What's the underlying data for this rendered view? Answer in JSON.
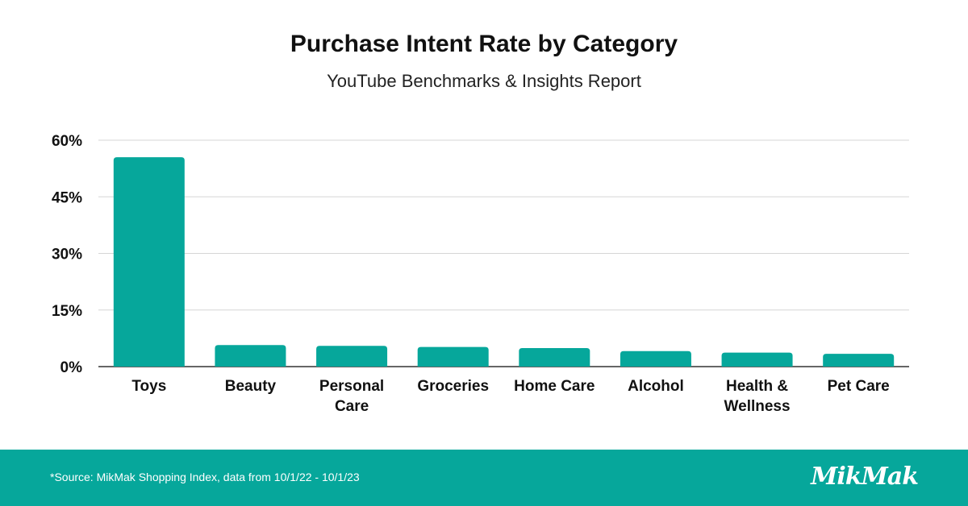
{
  "chart_data": {
    "type": "bar",
    "title": "Purchase Intent Rate by Category",
    "subtitle": "YouTube Benchmarks & Insights Report",
    "categories": [
      [
        "Toys"
      ],
      [
        "Beauty"
      ],
      [
        "Personal",
        "Care"
      ],
      [
        "Groceries"
      ],
      [
        "Home Care"
      ],
      [
        "Alcohol"
      ],
      [
        "Health &",
        "Wellness"
      ],
      [
        "Pet Care"
      ]
    ],
    "values": [
      55.5,
      5.7,
      5.5,
      5.2,
      4.9,
      4.1,
      3.7,
      3.4
    ],
    "ylim": [
      0,
      60
    ],
    "yticks": [
      0,
      15,
      30,
      45,
      60
    ],
    "ytick_labels": [
      "0%",
      "15%",
      "30%",
      "45%",
      "60%"
    ],
    "grid": true,
    "bar_color": "#06a79b"
  },
  "footer": {
    "source": "*Source: MikMak Shopping Index, data from 10/1/22 - 10/1/23",
    "logo_text": "MikMak",
    "background": "#06a79b"
  }
}
